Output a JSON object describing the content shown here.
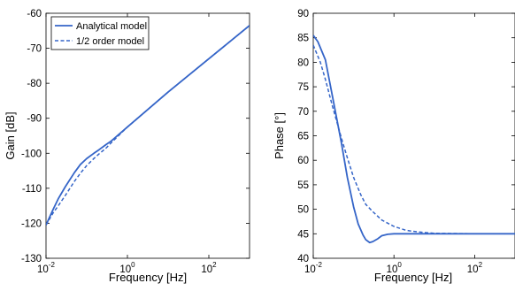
{
  "chart_data": [
    {
      "type": "line",
      "xscale": "log",
      "xlim": [
        0.01,
        1000
      ],
      "ylim": [
        -130,
        -60
      ],
      "xticks": [
        {
          "value": 0.01,
          "base": "10",
          "exp": "-2"
        },
        {
          "value": 1,
          "base": "10",
          "exp": "0"
        },
        {
          "value": 100,
          "base": "10",
          "exp": "2"
        }
      ],
      "yticks": [
        "-130",
        "-120",
        "-110",
        "-100",
        "-90",
        "-80",
        "-70",
        "-60"
      ],
      "xlabel": "Frequency [Hz]",
      "ylabel": "Gain [dB]",
      "grid": false,
      "legend": {
        "placement": "top-left",
        "entries": [
          "Analytical model",
          "1/2 order model"
        ]
      },
      "series": [
        {
          "name": "Analytical model",
          "style": "solid",
          "color": "#3565c8",
          "x": [
            0.01,
            0.015,
            0.02,
            0.03,
            0.05,
            0.07,
            0.1,
            0.15,
            0.2,
            0.3,
            0.4,
            1,
            10,
            100,
            1000
          ],
          "y": [
            -120.5,
            -116,
            -113,
            -109.5,
            -105.5,
            -103.2,
            -101.5,
            -100,
            -99,
            -97.5,
            -96.5,
            -92.5,
            -82.5,
            -73,
            -63.5
          ]
        },
        {
          "name": "1/2 order model",
          "style": "dashed",
          "color": "#3565c8",
          "x": [
            0.01,
            0.015,
            0.02,
            0.03,
            0.05,
            0.07,
            0.1,
            0.15,
            0.2,
            0.3,
            0.4,
            1,
            10,
            100,
            1000
          ],
          "y": [
            -120.5,
            -117,
            -115,
            -112,
            -108,
            -105.7,
            -103.5,
            -101.5,
            -100.2,
            -98.5,
            -97,
            -92.5,
            -82.5,
            -73,
            -63.5
          ]
        }
      ]
    },
    {
      "type": "line",
      "xscale": "log",
      "xlim": [
        0.01,
        1000
      ],
      "ylim": [
        40,
        90
      ],
      "xticks": [
        {
          "value": 0.01,
          "base": "10",
          "exp": "-2"
        },
        {
          "value": 1,
          "base": "10",
          "exp": "0"
        },
        {
          "value": 100,
          "base": "10",
          "exp": "2"
        }
      ],
      "yticks": [
        "40",
        "45",
        "50",
        "55",
        "60",
        "65",
        "70",
        "75",
        "80",
        "85",
        "90"
      ],
      "xlabel": "Frequency [Hz]",
      "ylabel": "Phase [°]",
      "grid": false,
      "legend": null,
      "series": [
        {
          "name": "Analytical model",
          "style": "solid",
          "color": "#3565c8",
          "x": [
            0.01,
            0.013,
            0.02,
            0.03,
            0.05,
            0.07,
            0.1,
            0.13,
            0.17,
            0.2,
            0.25,
            0.3,
            0.4,
            0.5,
            0.7,
            1,
            2,
            5,
            10,
            100,
            1000
          ],
          "y": [
            85.5,
            84.2,
            80.5,
            73,
            63.5,
            56.5,
            50.5,
            47,
            44.8,
            43.8,
            43.2,
            43.4,
            44,
            44.6,
            44.9,
            45,
            45,
            45,
            45,
            45,
            45
          ]
        },
        {
          "name": "1/2 order model",
          "style": "dashed",
          "color": "#3565c8",
          "x": [
            0.01,
            0.015,
            0.02,
            0.03,
            0.05,
            0.07,
            0.1,
            0.15,
            0.2,
            0.3,
            0.5,
            1,
            2,
            3,
            5,
            10,
            100,
            1000
          ],
          "y": [
            83.5,
            80,
            76.5,
            71,
            64.5,
            60.5,
            56.5,
            53,
            51,
            49.5,
            47.8,
            46.5,
            45.7,
            45.5,
            45.3,
            45.1,
            45,
            45
          ]
        }
      ]
    }
  ]
}
